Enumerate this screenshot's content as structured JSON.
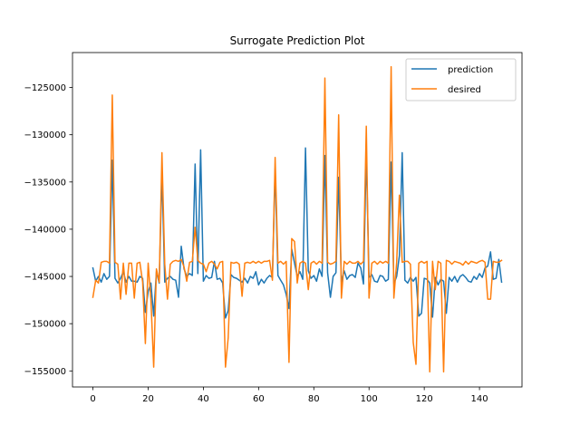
{
  "chart_data": {
    "type": "line",
    "title": "Surrogate Prediction Plot",
    "xlabel": "",
    "ylabel": "",
    "xlim": [
      -7.4,
      155.4
    ],
    "ylim": [
      -156700,
      -121300
    ],
    "xticks": [
      0,
      20,
      40,
      60,
      80,
      100,
      120,
      140
    ],
    "yticks": [
      -155000,
      -150000,
      -145000,
      -140000,
      -135000,
      -130000,
      -125000
    ],
    "ytick_labels": [
      "−155000",
      "−150000",
      "−145000",
      "−140000",
      "−135000",
      "−130000",
      "−125000"
    ],
    "xtick_labels": [
      "0",
      "20",
      "40",
      "60",
      "80",
      "100",
      "120",
      "140"
    ],
    "grid": false,
    "legend_position": "top-right",
    "series": [
      {
        "name": "prediction",
        "color": "#1f77b4",
        "x": [
          0,
          1,
          2,
          3,
          4,
          5,
          6,
          7,
          8,
          9,
          10,
          11,
          12,
          13,
          14,
          15,
          16,
          17,
          18,
          19,
          20,
          21,
          22,
          23,
          24,
          25,
          26,
          27,
          28,
          29,
          30,
          31,
          32,
          33,
          34,
          35,
          36,
          37,
          38,
          39,
          40,
          41,
          42,
          43,
          44,
          45,
          46,
          47,
          48,
          49,
          50,
          51,
          52,
          53,
          54,
          55,
          56,
          57,
          58,
          59,
          60,
          61,
          62,
          63,
          64,
          65,
          66,
          67,
          68,
          69,
          70,
          71,
          72,
          73,
          74,
          75,
          76,
          77,
          78,
          79,
          80,
          81,
          82,
          83,
          84,
          85,
          86,
          87,
          88,
          89,
          90,
          91,
          92,
          93,
          94,
          95,
          96,
          97,
          98,
          99,
          100,
          101,
          102,
          103,
          104,
          105,
          106,
          107,
          108,
          109,
          110,
          111,
          112,
          113,
          114,
          115,
          116,
          117,
          118,
          119,
          120,
          121,
          122,
          123,
          124,
          125,
          126,
          127,
          128,
          129,
          130,
          131,
          132,
          133,
          134,
          135,
          136,
          137,
          138,
          139,
          140,
          141,
          142,
          143,
          144,
          145,
          146,
          147,
          148
        ],
        "y": [
          -144100,
          -145500,
          -145000,
          -145600,
          -144700,
          -145300,
          -145000,
          -132700,
          -145200,
          -145700,
          -145200,
          -144500,
          -145600,
          -145000,
          -145500,
          -145500,
          -145600,
          -145000,
          -145200,
          -148800,
          -146600,
          -145700,
          -149200,
          -144500,
          -145700,
          -134000,
          -145600,
          -145200,
          -145000,
          -145300,
          -145400,
          -147200,
          -141800,
          -144200,
          -145000,
          -144700,
          -144900,
          -133100,
          -144700,
          -131600,
          -145500,
          -144900,
          -145200,
          -145100,
          -143400,
          -145300,
          -145200,
          -145700,
          -149400,
          -148600,
          -144800,
          -145100,
          -145200,
          -145400,
          -145600,
          -145200,
          -145700,
          -145000,
          -145200,
          -144500,
          -145900,
          -145300,
          -145700,
          -145200,
          -144900,
          -145100,
          -133600,
          -144900,
          -145400,
          -145900,
          -146900,
          -148400,
          -142100,
          -143600,
          -145000,
          -144500,
          -145300,
          -131400,
          -144400,
          -145200,
          -144900,
          -145500,
          -144200,
          -145000,
          -132200,
          -144600,
          -147200,
          -145000,
          -144600,
          -134500,
          -145600,
          -144400,
          -145300,
          -144900,
          -144800,
          -145100,
          -143600,
          -144100,
          -145800,
          -131900,
          -145100,
          -144800,
          -145500,
          -145600,
          -144900,
          -145000,
          -145500,
          -145300,
          -132900,
          -145800,
          -145000,
          -142800,
          -131900,
          -145400,
          -145700,
          -145100,
          -145500,
          -145100,
          -149200,
          -148900,
          -145200,
          -145300,
          -145700,
          -149300,
          -145100,
          -145900,
          -145300,
          -145500,
          -148900,
          -145100,
          -145500,
          -145000,
          -145600,
          -145000,
          -144800,
          -145100,
          -145500,
          -145600,
          -145000,
          -145300,
          -144700,
          -145100,
          -144100,
          -143900,
          -142400,
          -145300,
          -145200,
          -143200,
          -145600
        ]
      },
      {
        "name": "desired",
        "color": "#ff7f0e",
        "x": [
          0,
          1,
          2,
          3,
          4,
          5,
          6,
          7,
          8,
          9,
          10,
          11,
          12,
          13,
          14,
          15,
          16,
          17,
          18,
          19,
          20,
          21,
          22,
          23,
          24,
          25,
          26,
          27,
          28,
          29,
          30,
          31,
          32,
          33,
          34,
          35,
          36,
          37,
          38,
          39,
          40,
          41,
          42,
          43,
          44,
          45,
          46,
          47,
          48,
          49,
          50,
          51,
          52,
          53,
          54,
          55,
          56,
          57,
          58,
          59,
          60,
          61,
          62,
          63,
          64,
          65,
          66,
          67,
          68,
          69,
          70,
          71,
          72,
          73,
          74,
          75,
          76,
          77,
          78,
          79,
          80,
          81,
          82,
          83,
          84,
          85,
          86,
          87,
          88,
          89,
          90,
          91,
          92,
          93,
          94,
          95,
          96,
          97,
          98,
          99,
          100,
          101,
          102,
          103,
          104,
          105,
          106,
          107,
          108,
          109,
          110,
          111,
          112,
          113,
          114,
          115,
          116,
          117,
          118,
          119,
          120,
          121,
          122,
          123,
          124,
          125,
          126,
          127,
          128,
          129,
          130,
          131,
          132,
          133,
          134,
          135,
          136,
          137,
          138,
          139,
          140,
          141,
          142,
          143,
          144,
          145,
          146,
          147,
          148
        ],
        "y": [
          -147200,
          -145400,
          -145700,
          -143500,
          -143400,
          -143400,
          -143600,
          -125800,
          -143500,
          -143700,
          -147400,
          -143600,
          -146900,
          -143600,
          -143600,
          -147300,
          -143600,
          -143500,
          -145600,
          -152100,
          -143600,
          -147400,
          -154600,
          -144200,
          -145600,
          -131900,
          -143700,
          -147400,
          -143700,
          -143400,
          -143300,
          -143400,
          -143200,
          -144000,
          -145500,
          -143500,
          -143400,
          -139800,
          -143300,
          -143600,
          -143700,
          -144500,
          -143600,
          -143400,
          -143700,
          -144200,
          -143500,
          -143400,
          -154600,
          -151500,
          -143500,
          -143600,
          -143500,
          -143700,
          -147100,
          -143600,
          -143500,
          -143600,
          -143400,
          -143600,
          -143400,
          -143600,
          -143400,
          -143400,
          -143300,
          -145400,
          -132400,
          -143600,
          -143400,
          -143700,
          -143400,
          -154100,
          -141000,
          -141300,
          -145700,
          -143600,
          -143400,
          -143600,
          -146400,
          -143600,
          -143400,
          -143700,
          -143400,
          -143600,
          -124000,
          -143500,
          -143700,
          -143600,
          -143400,
          -127900,
          -147300,
          -143400,
          -143700,
          -143400,
          -143600,
          -143600,
          -143400,
          -143700,
          -143400,
          -129100,
          -147300,
          -143600,
          -143400,
          -143700,
          -143400,
          -143600,
          -143400,
          -143600,
          -122800,
          -147300,
          -143500,
          -136400,
          -143500,
          -143400,
          -143400,
          -143700,
          -152000,
          -154300,
          -143600,
          -143400,
          -143600,
          -143400,
          -155100,
          -143400,
          -146400,
          -143400,
          -143600,
          -155100,
          -143300,
          -143400,
          -143700,
          -143400,
          -143500,
          -143600,
          -143800,
          -143400,
          -143700,
          -143400,
          -143500,
          -143600,
          -143400,
          -143300,
          -143500,
          -147400,
          -147400,
          -143400,
          -143500,
          -143500,
          -143300
        ]
      }
    ]
  }
}
